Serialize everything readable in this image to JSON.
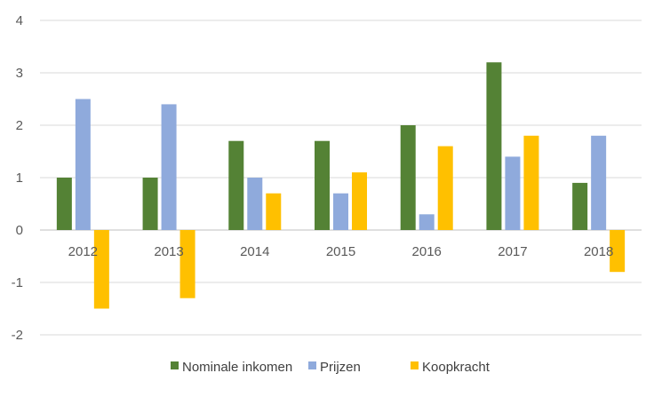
{
  "chart_data": {
    "type": "bar",
    "categories": [
      "2012",
      "2013",
      "2014",
      "2015",
      "2016",
      "2017",
      "2018"
    ],
    "series": [
      {
        "name": "Nominale inkomen",
        "color": "#548235",
        "values": [
          1.0,
          1.0,
          1.7,
          1.7,
          2.0,
          3.2,
          0.9
        ]
      },
      {
        "name": "Prijzen",
        "color": "#8FAADC",
        "values": [
          2.5,
          2.4,
          1.0,
          0.7,
          0.3,
          1.4,
          1.8
        ]
      },
      {
        "name": "Koopkracht",
        "color": "#FFC000",
        "values": [
          -1.5,
          -1.3,
          0.7,
          1.1,
          1.6,
          1.8,
          -0.8
        ]
      }
    ],
    "yticks": [
      4,
      3,
      2,
      1,
      0,
      -1,
      -2
    ],
    "ylim": [
      -2,
      4
    ],
    "grid": true,
    "legend_position": "bottom"
  }
}
